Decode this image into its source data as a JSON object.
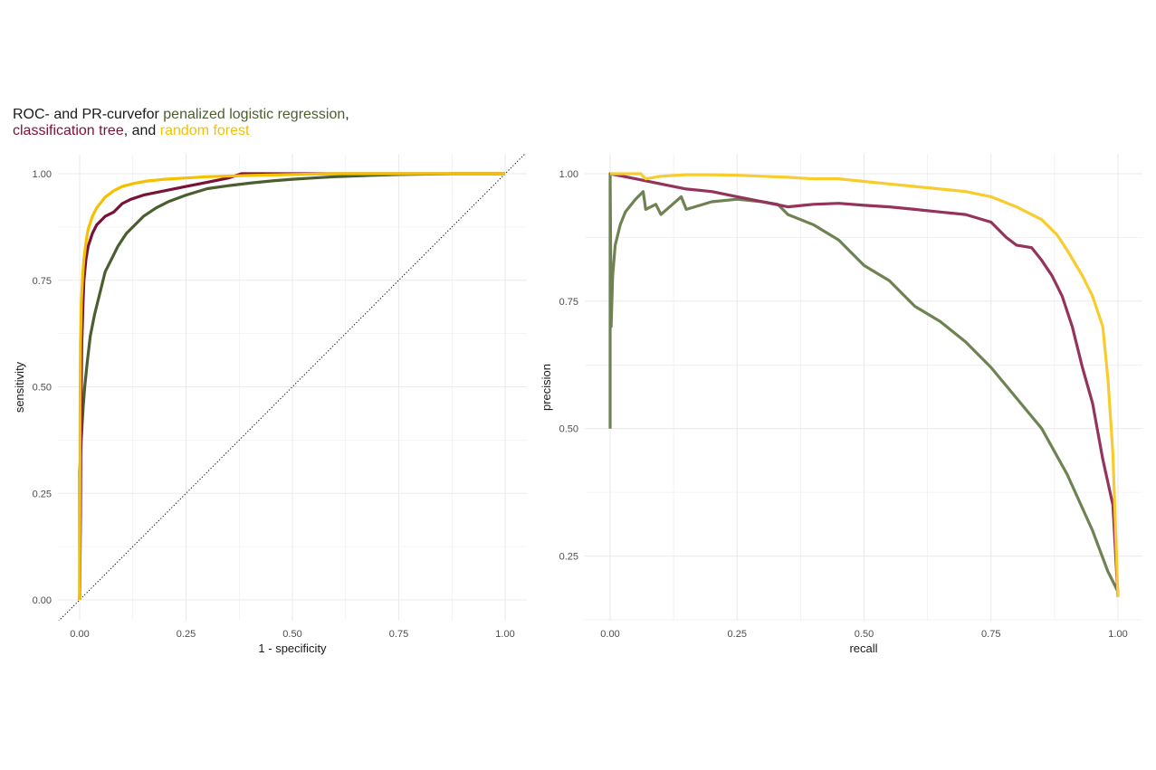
{
  "title": {
    "prefix": "ROC- and PR-curve",
    "for_word": "for",
    "model1": "penalized logistic regression",
    "comma1": ",",
    "model2": "classification tree",
    "comma2": ", and",
    "model3": "random forest"
  },
  "colors": {
    "logistic": "#4b5e2f",
    "tree": "#7a1237",
    "forest": "#f5c000",
    "logistic_pr": "#6e8252",
    "tree_pr": "#94335b",
    "forest_pr": "#f8cc2e",
    "grid": "#ebebeb",
    "diagonal": "#000000"
  },
  "chart_data": [
    {
      "type": "line",
      "xlabel": "1 - specificity",
      "ylabel": "sensitivity",
      "xlim": [
        0,
        1
      ],
      "ylim": [
        0,
        1
      ],
      "xticks": [
        "0.00",
        "0.25",
        "0.50",
        "0.75",
        "1.00"
      ],
      "yticks": [
        "0.00",
        "0.25",
        "0.50",
        "0.75",
        "1.00"
      ],
      "grid": true,
      "reference_line": "diagonal",
      "series": [
        {
          "key": "logistic",
          "x": [
            0,
            0,
            0.004,
            0.008,
            0.012,
            0.018,
            0.025,
            0.035,
            0.05,
            0.06,
            0.075,
            0.09,
            0.11,
            0.13,
            0.15,
            0.18,
            0.21,
            0.25,
            0.3,
            0.35,
            0.4,
            0.45,
            0.5,
            0.55,
            0.6,
            0.68,
            0.75,
            0.88,
            1
          ],
          "y": [
            0,
            0.3,
            0.38,
            0.45,
            0.5,
            0.56,
            0.62,
            0.67,
            0.73,
            0.77,
            0.8,
            0.83,
            0.86,
            0.88,
            0.9,
            0.92,
            0.935,
            0.95,
            0.965,
            0.972,
            0.978,
            0.983,
            0.987,
            0.99,
            0.993,
            0.996,
            0.998,
            1,
            1
          ]
        },
        {
          "key": "tree",
          "x": [
            0,
            0.002,
            0.003,
            0.005,
            0.008,
            0.01,
            0.015,
            0.02,
            0.03,
            0.04,
            0.06,
            0.08,
            0.1,
            0.12,
            0.15,
            0.2,
            0.25,
            0.3,
            0.35,
            0.38,
            0.5,
            0.6,
            0.7,
            0.8,
            0.88,
            1
          ],
          "y": [
            0,
            0.2,
            0.4,
            0.6,
            0.7,
            0.75,
            0.8,
            0.83,
            0.86,
            0.88,
            0.9,
            0.91,
            0.93,
            0.94,
            0.95,
            0.96,
            0.97,
            0.98,
            0.99,
            1,
            1,
            1,
            1,
            1,
            1,
            1
          ]
        },
        {
          "key": "forest",
          "x": [
            0,
            0.001,
            0.002,
            0.004,
            0.007,
            0.01,
            0.015,
            0.02,
            0.03,
            0.04,
            0.06,
            0.08,
            0.1,
            0.13,
            0.16,
            0.2,
            0.25,
            0.3,
            0.4,
            0.5,
            0.6,
            0.8,
            1
          ],
          "y": [
            0,
            0.45,
            0.6,
            0.7,
            0.76,
            0.8,
            0.84,
            0.87,
            0.9,
            0.92,
            0.945,
            0.96,
            0.97,
            0.978,
            0.983,
            0.987,
            0.99,
            0.993,
            0.996,
            0.998,
            1,
            1,
            1
          ]
        }
      ]
    },
    {
      "type": "line",
      "xlabel": "recall",
      "ylabel": "precision",
      "xlim": [
        0,
        1
      ],
      "ylim": [
        0.164,
        1
      ],
      "xticks": [
        "0.00",
        "0.25",
        "0.50",
        "0.75",
        "1.00"
      ],
      "yticks": [
        "0.25",
        "0.50",
        "0.75",
        "1.00"
      ],
      "ytick_values": [
        0.25,
        0.5,
        0.75,
        1
      ],
      "grid": true,
      "series": [
        {
          "key": "logistic_pr",
          "x": [
            0,
            0,
            0.002,
            0.005,
            0.01,
            0.02,
            0.03,
            0.05,
            0.065,
            0.07,
            0.09,
            0.1,
            0.14,
            0.15,
            0.2,
            0.25,
            0.3,
            0.33,
            0.35,
            0.4,
            0.45,
            0.5,
            0.55,
            0.6,
            0.65,
            0.7,
            0.75,
            0.8,
            0.85,
            0.9,
            0.95,
            0.98,
            1
          ],
          "y": [
            0.5,
            1,
            0.7,
            0.8,
            0.86,
            0.9,
            0.925,
            0.95,
            0.965,
            0.93,
            0.94,
            0.92,
            0.955,
            0.93,
            0.945,
            0.95,
            0.945,
            0.94,
            0.92,
            0.9,
            0.87,
            0.82,
            0.79,
            0.74,
            0.71,
            0.67,
            0.62,
            0.56,
            0.5,
            0.41,
            0.3,
            0.22,
            0.18
          ]
        },
        {
          "key": "tree_pr",
          "x": [
            0,
            0.05,
            0.1,
            0.15,
            0.2,
            0.25,
            0.3,
            0.35,
            0.4,
            0.45,
            0.5,
            0.55,
            0.6,
            0.65,
            0.7,
            0.75,
            0.78,
            0.8,
            0.83,
            0.85,
            0.87,
            0.89,
            0.91,
            0.93,
            0.95,
            0.97,
            0.99,
            1
          ],
          "y": [
            1,
            0.99,
            0.98,
            0.97,
            0.965,
            0.955,
            0.945,
            0.935,
            0.94,
            0.942,
            0.938,
            0.935,
            0.93,
            0.925,
            0.92,
            0.905,
            0.875,
            0.86,
            0.855,
            0.83,
            0.8,
            0.76,
            0.7,
            0.62,
            0.55,
            0.44,
            0.35,
            0.17
          ]
        },
        {
          "key": "forest_pr",
          "x": [
            0,
            0.06,
            0.07,
            0.1,
            0.15,
            0.2,
            0.25,
            0.3,
            0.35,
            0.4,
            0.45,
            0.5,
            0.55,
            0.6,
            0.65,
            0.7,
            0.75,
            0.8,
            0.85,
            0.88,
            0.9,
            0.93,
            0.95,
            0.97,
            0.98,
            0.99,
            1
          ],
          "y": [
            1,
            1,
            0.99,
            0.995,
            0.998,
            0.998,
            0.997,
            0.995,
            0.993,
            0.99,
            0.99,
            0.985,
            0.98,
            0.975,
            0.97,
            0.965,
            0.955,
            0.935,
            0.91,
            0.88,
            0.85,
            0.8,
            0.76,
            0.7,
            0.6,
            0.45,
            0.17
          ]
        }
      ]
    }
  ]
}
